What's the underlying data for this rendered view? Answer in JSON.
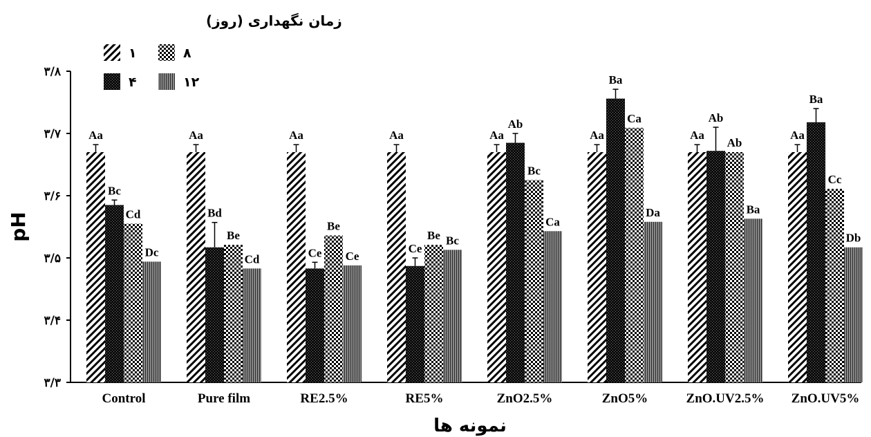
{
  "chart_data": {
    "type": "bar",
    "xlabel": "نمونه ها",
    "ylabel": "pH",
    "ylim": [
      3.3,
      3.8
    ],
    "yticks": [
      3.3,
      3.4,
      3.5,
      3.6,
      3.7,
      3.8
    ],
    "ytick_labels": [
      "۳/۳",
      "۳/۴",
      "۳/۵",
      "۳/۶",
      "۳/۷",
      "۳/۸"
    ],
    "legend": {
      "title": "زمان نگهداری (روز)",
      "placement": "top-left",
      "entries": [
        {
          "label": "۱",
          "series": 0
        },
        {
          "label": "۸",
          "series": 2
        },
        {
          "label": "۴",
          "series": 1
        },
        {
          "label": "۱۲",
          "series": 3
        }
      ]
    },
    "categories": [
      "Control",
      "Pure film",
      "RE2.5%",
      "RE5%",
      "ZnO2.5%",
      "ZnO5%",
      "ZnO.UV2.5%",
      "ZnO.UV5%"
    ],
    "series": [
      {
        "name": "۱",
        "pattern": "diagonal",
        "values": [
          3.67,
          3.67,
          3.67,
          3.67,
          3.67,
          3.67,
          3.67,
          3.67
        ],
        "errors": [
          0.012,
          0.012,
          0.012,
          0.012,
          0.012,
          0.012,
          0.012,
          0.012
        ],
        "labels": [
          "Aa",
          "Aa",
          "Aa",
          "Aa",
          "Aa",
          "Aa",
          "Aa",
          "Aa"
        ]
      },
      {
        "name": "۴",
        "pattern": "dense",
        "values": [
          3.585,
          3.517,
          3.483,
          3.487,
          3.685,
          3.756,
          3.672,
          3.718
        ],
        "errors": [
          0.008,
          0.04,
          0.01,
          0.013,
          0.015,
          0.015,
          0.038,
          0.022
        ],
        "labels": [
          "Bc",
          "Bd",
          "Ce",
          "Ce",
          "Ab",
          "Ba",
          "Ab",
          "Ba"
        ]
      },
      {
        "name": "۸",
        "pattern": "checker",
        "values": [
          3.555,
          3.521,
          3.536,
          3.521,
          3.625,
          3.709,
          3.67,
          3.611
        ],
        "errors": [
          0,
          0,
          0,
          0,
          0,
          0,
          0,
          0
        ],
        "labels": [
          "Cd",
          "Be",
          "Be",
          "Be",
          "Bc",
          "Ca",
          "Ab",
          "Cc"
        ]
      },
      {
        "name": "۱۲",
        "pattern": "gray",
        "values": [
          3.494,
          3.483,
          3.488,
          3.513,
          3.543,
          3.558,
          3.563,
          3.517
        ],
        "errors": [
          0,
          0,
          0,
          0,
          0,
          0,
          0,
          0
        ],
        "labels": [
          "Dc",
          "Cd",
          "Ce",
          "Bc",
          "Ca",
          "Da",
          "Ba",
          "Db"
        ]
      }
    ]
  }
}
